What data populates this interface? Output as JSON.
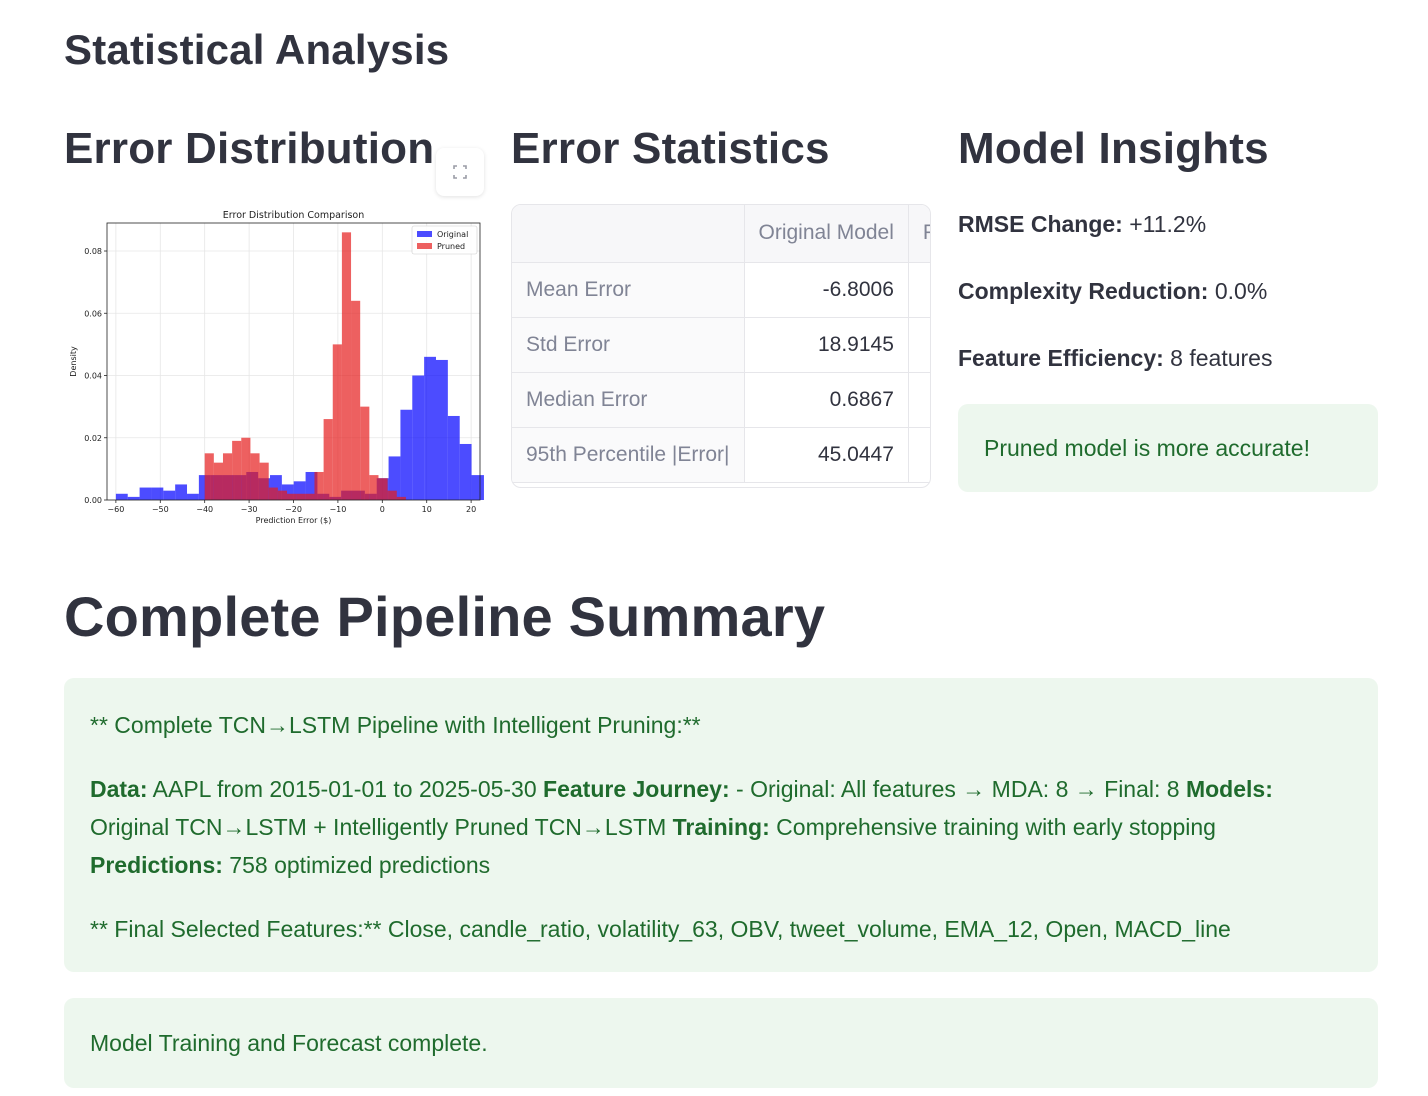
{
  "section_title": "Statistical Analysis",
  "columns": {
    "error_distribution_title": "Error Distribution",
    "error_statistics_title": "Error Statistics",
    "model_insights_title": "Model Insights"
  },
  "chart_data": {
    "type": "bar",
    "title": "Error Distribution Comparison",
    "xlabel": "Prediction Error ($)",
    "ylabel": "Density",
    "xlim": [
      -62,
      22
    ],
    "ylim": [
      0,
      0.089
    ],
    "xticks": [
      -60,
      -50,
      -40,
      -30,
      -20,
      -10,
      0,
      10,
      20
    ],
    "yticks": [
      0.0,
      0.02,
      0.04,
      0.06,
      0.08
    ],
    "grid": true,
    "legend_position": "top-right",
    "series": [
      {
        "name": "Original",
        "color": "#0000ff",
        "bin_start": -60,
        "bin_width": 2.67,
        "values": [
          0.002,
          0.001,
          0.004,
          0.004,
          0.003,
          0.005,
          0.002,
          0.008,
          0.008,
          0.008,
          0.008,
          0.009,
          0.007,
          0.008,
          0.005,
          0.006,
          0.009,
          0.002,
          0.001,
          0.003,
          0.003,
          0.002,
          0.007,
          0.014,
          0.029,
          0.04,
          0.046,
          0.045,
          0.027,
          0.018,
          0.008,
          0.008,
          0.013,
          0.008
        ]
      },
      {
        "name": "Pruned",
        "color": "#e51c1c",
        "bin_start": -40,
        "bin_width": 2.06,
        "values": [
          0.015,
          0.012,
          0.015,
          0.019,
          0.02,
          0.015,
          0.012,
          0.004,
          0.003,
          0.002,
          0.002,
          0.002,
          0.009,
          0.026,
          0.05,
          0.086,
          0.064,
          0.03,
          0.008,
          0.007,
          0.003,
          0.001
        ]
      }
    ]
  },
  "fullscreen_icon": "expand-icon",
  "error_table": {
    "columns": [
      "",
      "Original Model",
      "P"
    ],
    "rows": [
      {
        "label": "Mean Error",
        "original": "-6.8006"
      },
      {
        "label": "Std Error",
        "original": "18.9145"
      },
      {
        "label": "Median Error",
        "original": "0.6867"
      },
      {
        "label": "95th Percentile |Error|",
        "original": "45.0447"
      }
    ]
  },
  "insights": {
    "rmse_label": "RMSE Change:",
    "rmse_value": " +11.2%",
    "complexity_label": "Complexity Reduction:",
    "complexity_value": " 0.0%",
    "feature_label": "Feature Efficiency:",
    "feature_value": " 8 features",
    "success_message": "Pruned model is more accurate!"
  },
  "summary": {
    "title": "Complete Pipeline Summary",
    "heading_line": "** Complete TCN→LSTM Pipeline with Intelligent Pruning:**",
    "data_label": "Data:",
    "data_value": " AAPL from 2015-01-01 to 2025-05-30 ",
    "journey_label": "Feature Journey:",
    "journey_value": " - Original: All features → MDA: 8 → Final: 8 ",
    "models_label": "Models:",
    "models_value": " Original TCN→LSTM + Intelligently Pruned TCN→LSTM ",
    "training_label": "Training:",
    "training_value": " Comprehensive training with early stopping ",
    "predictions_label": "Predictions:",
    "predictions_value": " 758 optimized predictions",
    "features_line": "** Final Selected Features:** Close, candle_ratio, volatility_63, OBV, tweet_volume, EMA_12, Open, MACD_line"
  },
  "completion_message": "Model Training and Forecast complete.",
  "colors": {
    "success_bg": "#edf7ee",
    "success_text": "#1f6b2d",
    "heading": "#31333f"
  }
}
